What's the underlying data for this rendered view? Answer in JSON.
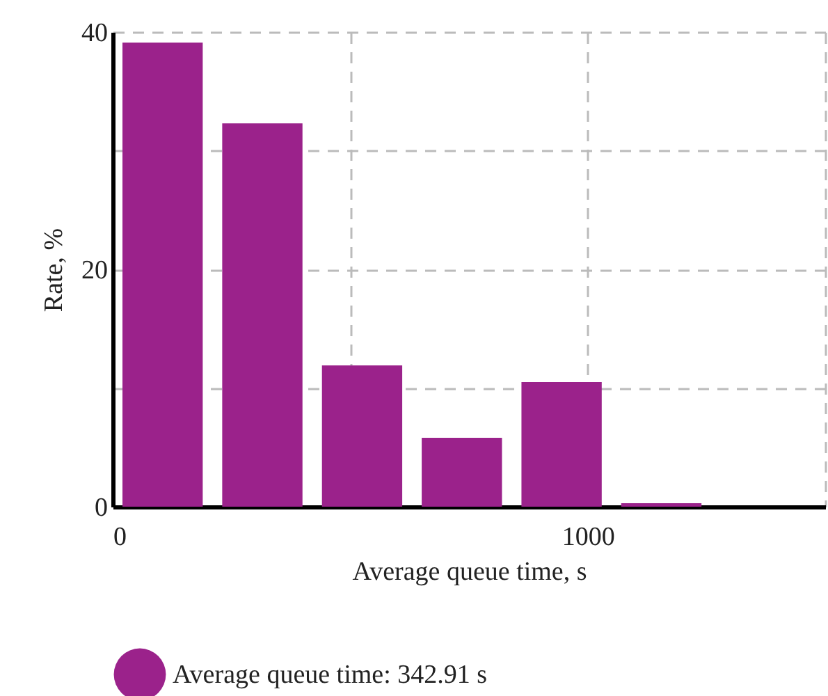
{
  "chart_data": {
    "type": "histogram",
    "xlabel": "Average queue time, s",
    "ylabel": "Rate, %",
    "bins": [
      0,
      210,
      420,
      630,
      840,
      1050,
      1260
    ],
    "series": [
      {
        "name": "Average queue time: 342.91 s",
        "color": "#9b228b",
        "values": [
          39.1,
          32.3,
          11.9,
          5.8,
          10.5,
          0.3
        ]
      }
    ],
    "xlim": [
      0,
      1500
    ],
    "xticks": [
      0,
      {
        "value": 500,
        "label": null
      },
      1000,
      {
        "value": 1500,
        "label": null
      }
    ],
    "ylim": [
      0,
      40
    ],
    "yticks": [
      0,
      {
        "value": 10,
        "label": null
      },
      20,
      {
        "value": 30,
        "label": null
      },
      40
    ],
    "grid": true,
    "legend": "bottom"
  }
}
